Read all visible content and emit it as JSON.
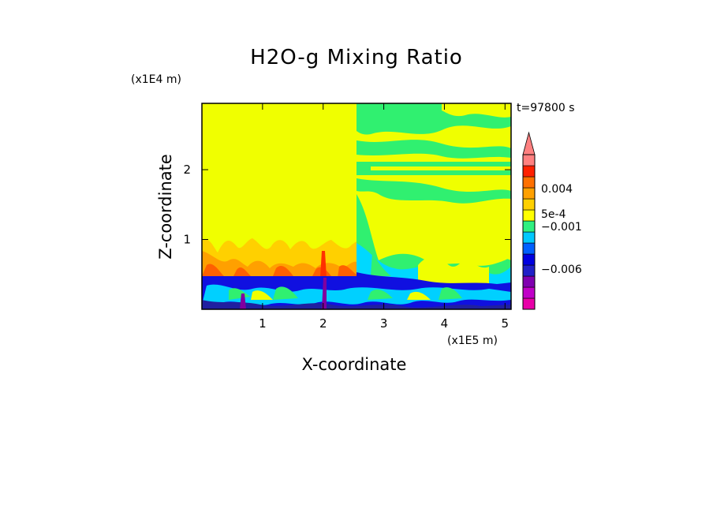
{
  "chart_data": {
    "type": "heatmap",
    "title": "H2O-g Mixing Ratio",
    "xlabel": "X-coordinate",
    "ylabel": "Z-coordinate",
    "x_scale_label": "(x1E5 m)",
    "y_scale_label": "(x1E4 m)",
    "time_label": "t=97800 s",
    "xlim": [
      0,
      5.1
    ],
    "ylim": [
      0,
      2.95
    ],
    "x_ticks": [
      1,
      2,
      3,
      4,
      5
    ],
    "y_ticks": [
      1,
      2
    ],
    "colorbar": {
      "colors": [
        "#e800a8",
        "#c000c8",
        "#8000b0",
        "#2020c8",
        "#0000e0",
        "#0060ff",
        "#00c8ff",
        "#30f080",
        "#ffff00",
        "#ffd000",
        "#ffa000",
        "#ff7000",
        "#ff2000",
        "#ff8080"
      ],
      "labels": [
        {
          "text": "0.004",
          "level": 0.004
        },
        {
          "text": "5e-4",
          "level": 0.0005
        },
        {
          "text": "−0.001",
          "level": -0.001
        },
        {
          "text": "−0.006",
          "level": -0.006
        }
      ]
    },
    "regions": [
      {
        "x": [
          0,
          2.55
        ],
        "z": [
          0,
          0.5
        ],
        "category": "negative (blue)"
      },
      {
        "x": [
          0,
          2.55
        ],
        "z": [
          0.5,
          1.05
        ],
        "category": "positive (orange)"
      },
      {
        "x": [
          0,
          2.55
        ],
        "z": [
          1.05,
          2.95
        ],
        "category": "near zero (yellow)"
      },
      {
        "x": [
          2.55,
          5.1
        ],
        "z": [
          0,
          0.55
        ],
        "category": "negative (blue)"
      },
      {
        "x": [
          2.55,
          5.1
        ],
        "z": [
          0.55,
          2.95
        ],
        "category": "mixed yellow/green"
      }
    ]
  }
}
